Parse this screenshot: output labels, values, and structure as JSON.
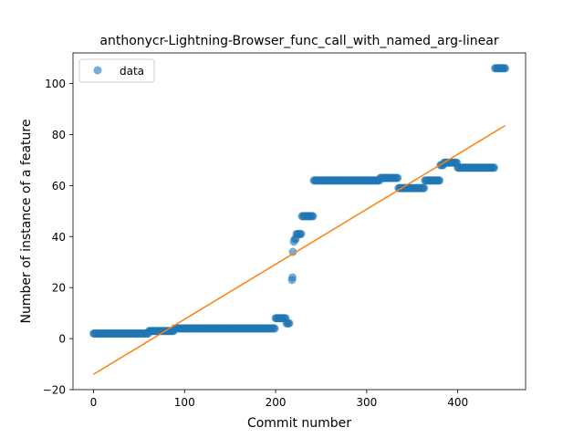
{
  "chart_data": {
    "type": "scatter",
    "title": "anthonycr-Lightning-Browser_func_call_with_named_arg-linear",
    "xlabel": "Commit number",
    "ylabel": "Number of instance of a feature",
    "xlim": [
      -22.5,
      474.5
    ],
    "ylim": [
      -20,
      112
    ],
    "xticks": [
      0,
      100,
      200,
      300,
      400
    ],
    "yticks": [
      -20,
      0,
      20,
      40,
      60,
      80,
      100
    ],
    "legend": {
      "position": "top-left",
      "entries": [
        {
          "label": "data",
          "marker": "circle"
        }
      ]
    },
    "series": [
      {
        "name": "data",
        "kind": "scatter",
        "color": "#1f77b4",
        "alpha": 0.6,
        "segments": [
          {
            "from": 0,
            "to": 60,
            "step": 1,
            "y": 2
          },
          {
            "from": 61,
            "to": 88,
            "step": 1,
            "y": 3
          },
          {
            "from": 89,
            "to": 199,
            "step": 1,
            "y": 4
          },
          {
            "from": 200,
            "to": 211,
            "step": 1,
            "y": 8
          },
          {
            "from": 212,
            "to": 215,
            "step": 1,
            "y": 6
          },
          {
            "from": 220,
            "to": 220,
            "step": 1,
            "y": 38
          },
          {
            "from": 221,
            "to": 222,
            "step": 1,
            "y": 39
          },
          {
            "from": 223,
            "to": 228,
            "step": 1,
            "y": 41
          },
          {
            "from": 229,
            "to": 241,
            "step": 1,
            "y": 48
          },
          {
            "from": 242,
            "to": 314,
            "step": 1,
            "y": 62
          },
          {
            "from": 315,
            "to": 334,
            "step": 1,
            "y": 63
          },
          {
            "from": 335,
            "to": 363,
            "step": 1,
            "y": 59
          },
          {
            "from": 364,
            "to": 380,
            "step": 1,
            "y": 62
          },
          {
            "from": 381,
            "to": 384,
            "step": 1,
            "y": 68
          },
          {
            "from": 385,
            "to": 399,
            "step": 1,
            "y": 69
          },
          {
            "from": 400,
            "to": 440,
            "step": 1,
            "y": 67
          },
          {
            "from": 441,
            "to": 452,
            "step": 1,
            "y": 106
          }
        ],
        "points": [
          {
            "x": 218,
            "y": 23
          },
          {
            "x": 218.5,
            "y": 24
          },
          {
            "x": 219,
            "y": 34
          }
        ]
      },
      {
        "name": "linear fit",
        "kind": "line",
        "color": "#ff7f0e",
        "x": [
          0,
          452
        ],
        "y": [
          -14,
          83.5
        ]
      }
    ]
  }
}
